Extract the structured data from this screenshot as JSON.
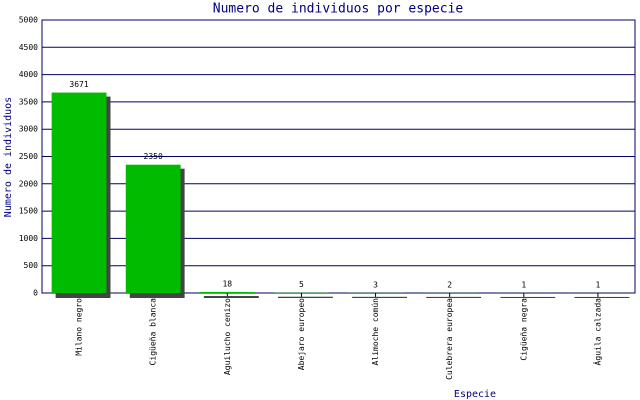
{
  "chart_data": {
    "type": "bar",
    "title": "Numero de individuos por especie",
    "x_label": "Especie",
    "y_label": "Numero de individuos",
    "categories": [
      "Milano negro",
      "Cigüeña blanca",
      "Aguilucho cenizo",
      "Abejaro europeo",
      "Alimoche común",
      "Culebrera europea",
      "Cigüeña negra",
      "Águila calzada"
    ],
    "values": [
      3671,
      2350,
      18,
      5,
      3,
      2,
      1,
      1
    ],
    "color": "#00bb00",
    "ylim": [
      0,
      5000
    ],
    "yticks": [
      0,
      500,
      1000,
      1500,
      2000,
      2500,
      3000,
      3500,
      4000,
      4500,
      5000
    ],
    "grid": true
  }
}
